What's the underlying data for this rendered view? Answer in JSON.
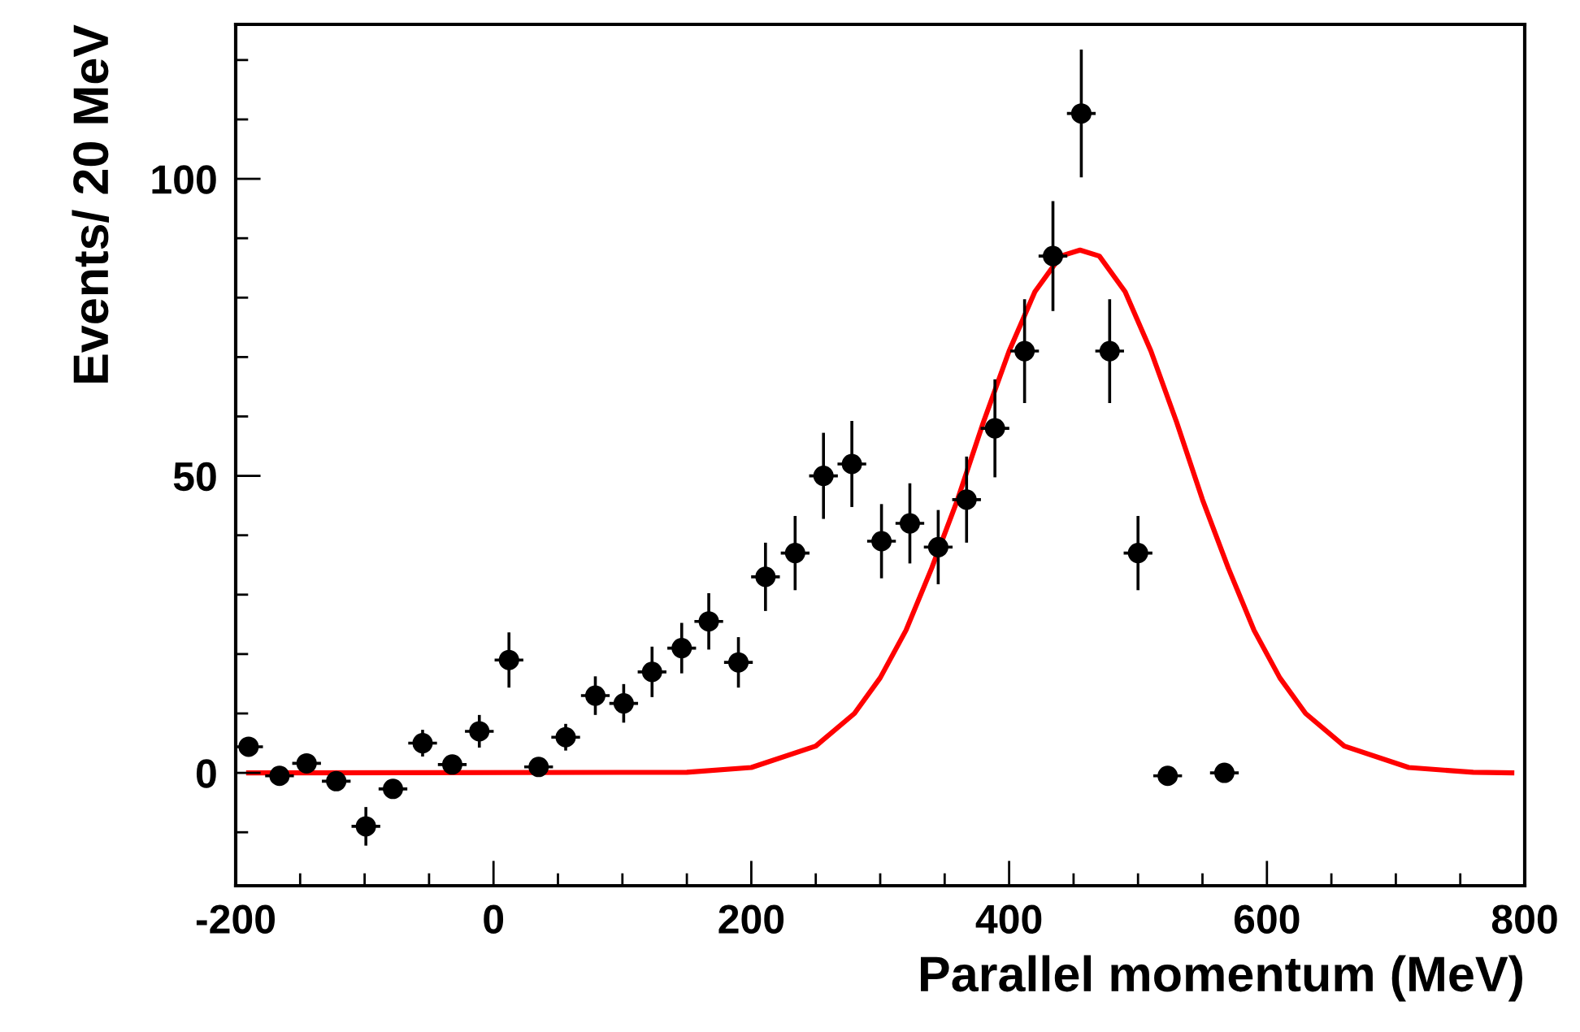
{
  "chart_data": {
    "type": "scatter",
    "xlabel": "Parallel momentum (MeV)",
    "ylabel": "Events/ 20 MeV",
    "xlim": [
      -200,
      800
    ],
    "ylim": [
      -19,
      126
    ],
    "xticks": [
      -200,
      {
        "value": -150,
        "label": null
      },
      {
        "value": -100,
        "label": null
      },
      {
        "value": -50,
        "label": null
      },
      0,
      {
        "value": 50,
        "label": null
      },
      {
        "value": 100,
        "label": null
      },
      {
        "value": 150,
        "label": null
      },
      200,
      {
        "value": 250,
        "label": null
      },
      {
        "value": 300,
        "label": null
      },
      {
        "value": 350,
        "label": null
      },
      400,
      {
        "value": 450,
        "label": null
      },
      {
        "value": 500,
        "label": null
      },
      {
        "value": 550,
        "label": null
      },
      600,
      {
        "value": 650,
        "label": null
      },
      {
        "value": 700,
        "label": null
      },
      {
        "value": 750,
        "label": null
      },
      800
    ],
    "yticks": [
      {
        "value": -10,
        "label": null
      },
      0,
      {
        "value": 10,
        "label": null
      },
      {
        "value": 20,
        "label": null
      },
      {
        "value": 30,
        "label": null
      },
      {
        "value": 40,
        "label": null
      },
      50,
      {
        "value": 60,
        "label": null
      },
      {
        "value": 70,
        "label": null
      },
      {
        "value": 80,
        "label": null
      },
      {
        "value": 90,
        "label": null
      },
      100,
      {
        "value": 110,
        "label": null
      },
      {
        "value": 120,
        "label": null
      }
    ],
    "grid": false,
    "legend": false,
    "series": [
      {
        "color": "#000000",
        "marker": "circle",
        "x": [
          -190,
          -166,
          -145,
          -122,
          -99,
          -78,
          -55,
          -32,
          -11,
          12,
          35,
          56,
          79,
          101,
          123,
          146,
          167,
          190,
          211,
          234,
          256,
          278,
          301,
          323,
          345,
          367,
          389,
          412,
          434,
          456,
          478,
          500,
          523,
          567
        ],
        "values": [
          4.4,
          -0.5,
          1.6,
          -1.4,
          -9,
          -2.7,
          5,
          1.4,
          7,
          19,
          1,
          6,
          13,
          11.7,
          17,
          21,
          25.5,
          18.6,
          33,
          37,
          50,
          52,
          39,
          42,
          38,
          46,
          58,
          71,
          87,
          111,
          71,
          37,
          -0.5,
          0
        ],
        "errors": [
          null,
          null,
          null,
          null,
          3,
          null,
          2,
          null,
          2.5,
          4.4,
          null,
          2,
          3,
          3,
          4,
          4,
          4.5,
          4,
          5.5,
          6,
          7,
          7,
          6,
          6.5,
          6,
          7,
          8,
          8.5,
          9,
          10.5,
          8.5,
          6,
          null,
          null
        ],
        "xerrors": [
          10,
          10,
          10,
          10,
          10,
          10,
          10,
          10,
          10,
          10,
          10,
          10,
          10,
          10,
          10,
          10,
          10,
          10,
          10,
          10,
          10,
          10,
          10,
          10,
          10,
          10,
          10,
          10,
          10,
          10,
          10,
          10,
          10,
          10
        ]
      },
      {
        "type": "line",
        "color": "#ff0000",
        "marker": "none",
        "line_style": "solid",
        "x": [
          -190,
          150,
          200,
          250,
          280,
          300,
          320,
          340,
          360,
          380,
          400,
          420,
          440,
          455,
          470,
          490,
          510,
          530,
          550,
          570,
          590,
          610,
          630,
          660,
          710,
          760,
          790
        ],
        "values": [
          0,
          0.1,
          0.9,
          4.5,
          10,
          16,
          24,
          34.5,
          46,
          59,
          71,
          81,
          87,
          88,
          87,
          81,
          71,
          59,
          46,
          34.5,
          24,
          16,
          10,
          4.5,
          0.9,
          0.1,
          0
        ]
      }
    ]
  }
}
